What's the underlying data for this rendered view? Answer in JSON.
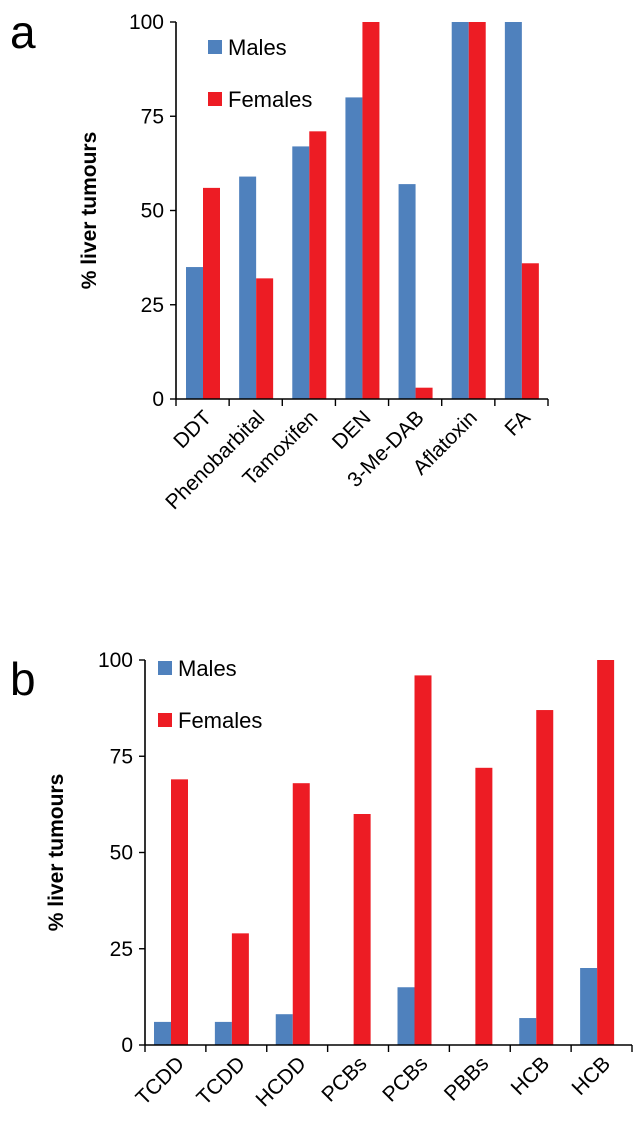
{
  "chart_data": [
    {
      "panel": "a",
      "type": "bar",
      "categories": [
        "DDT",
        "Phenobarbital",
        "Tamoxifen",
        "DEN",
        "3-Me-DAB",
        "Aflatoxin",
        "FA"
      ],
      "series": [
        {
          "name": "Males",
          "values": [
            35,
            59,
            67,
            80,
            57,
            100,
            100
          ]
        },
        {
          "name": "Females",
          "values": [
            56,
            32,
            71,
            100,
            3,
            100,
            36
          ]
        }
      ],
      "ylabel": "%  liver tumours",
      "ylim": [
        0,
        100
      ],
      "yticks": [
        "0",
        "25",
        "50",
        "75",
        "100"
      ],
      "legend": "top-left",
      "grid": false
    },
    {
      "panel": "b",
      "type": "bar",
      "categories": [
        "TCDD",
        "TCDD",
        "HCDD",
        "PCBs",
        "PCBs",
        "PBBs",
        "HCB",
        "HCB"
      ],
      "series": [
        {
          "name": "Males",
          "values": [
            6,
            6,
            8,
            0,
            15,
            0,
            7,
            20
          ]
        },
        {
          "name": "Females",
          "values": [
            69,
            29,
            68,
            60,
            96,
            72,
            87,
            100
          ]
        }
      ],
      "ylabel": "% liver tumours",
      "ylim": [
        0,
        100
      ],
      "yticks": [
        "0",
        "25",
        "50",
        "75",
        "100"
      ],
      "legend": "top-left",
      "grid": false
    }
  ],
  "colors": {
    "males": "#4f81bd",
    "females": "#ed1c24",
    "axis": "#000000"
  }
}
